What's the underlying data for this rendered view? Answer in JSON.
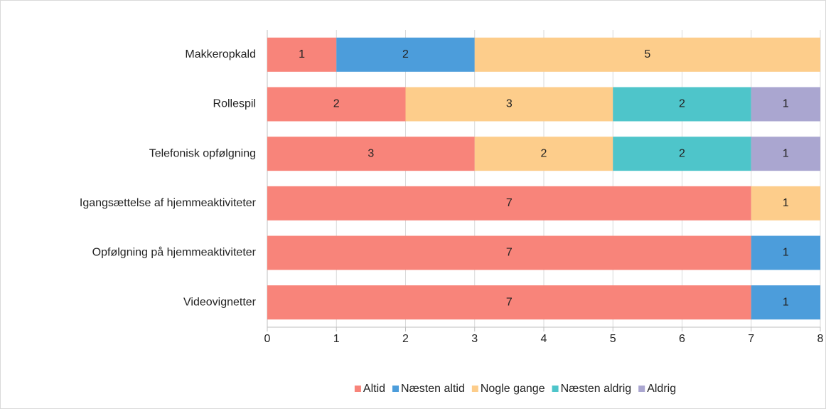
{
  "chart_data": {
    "type": "bar",
    "orientation": "horizontal",
    "stacked": true,
    "categories": [
      "Makkeropkald",
      "Rollespil",
      "Telefonisk opfølgning",
      "Igangsættelse af hjemmeaktiviteter",
      "Opfølgning på hjemmeaktiviteter",
      "Videovignetter"
    ],
    "series": [
      {
        "name": "Altid",
        "color": "#f8847a",
        "values": [
          1,
          2,
          3,
          7,
          7,
          7
        ]
      },
      {
        "name": "Næsten altid",
        "color": "#4c9ddb",
        "values": [
          2,
          null,
          null,
          null,
          1,
          1
        ]
      },
      {
        "name": "Nogle gange",
        "color": "#fdcd8b",
        "values": [
          5,
          3,
          2,
          1,
          null,
          null
        ]
      },
      {
        "name": "Næsten aldrig",
        "color": "#4ec5ca",
        "values": [
          null,
          2,
          2,
          null,
          null,
          null
        ]
      },
      {
        "name": "Aldrig",
        "color": "#aaa6d0",
        "values": [
          null,
          1,
          1,
          null,
          null,
          null
        ]
      }
    ],
    "xlim": [
      0,
      8
    ],
    "xticks": [
      0,
      1,
      2,
      3,
      4,
      5,
      6,
      7,
      8
    ],
    "grid": true,
    "legend": "bottom"
  }
}
